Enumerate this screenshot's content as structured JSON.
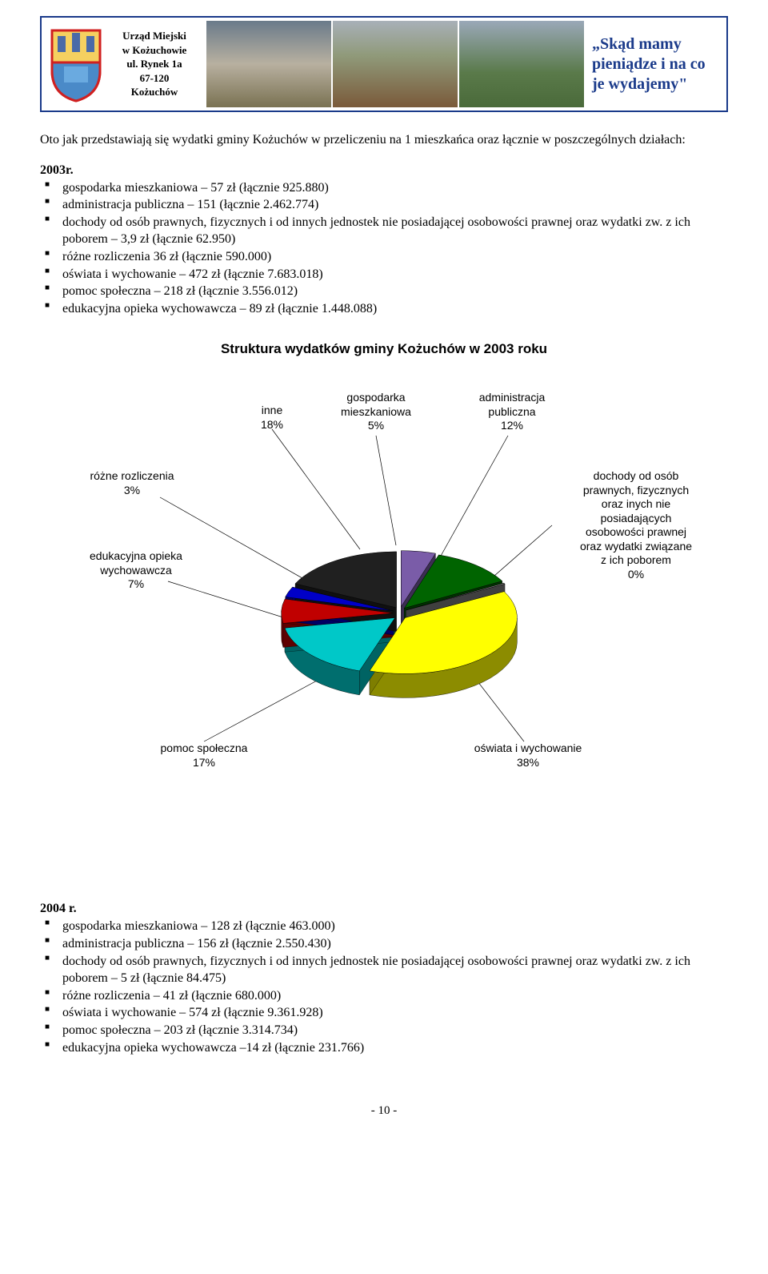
{
  "header": {
    "address": {
      "l1": "Urząd Miejski",
      "l2": "w Kożuchowie",
      "l3": "ul. Rynek 1a",
      "l4": "67-120",
      "l5": "Kożuchów"
    },
    "title": "„Skąd mamy pieniądze i na co je wydajemy\""
  },
  "intro": "Oto jak przedstawiają się wydatki gminy Kożuchów w przeliczeniu na 1 mieszkańca oraz łącznie w poszczególnych działach:",
  "year2003": {
    "heading": "2003r.",
    "items": [
      "gospodarka mieszkaniowa – 57 zł (łącznie 925.880)",
      "administracja publiczna – 151 (łącznie 2.462.774)",
      "dochody od osób prawnych, fizycznych i od innych jednostek nie posiadającej osobowości prawnej oraz wydatki zw. z ich poborem – 3,9 zł (łącznie 62.950)",
      "różne rozliczenia 36 zł (łącznie 590.000)",
      "oświata i wychowanie – 472 zł (łącznie 7.683.018)",
      "pomoc społeczna – 218 zł (łącznie 3.556.012)",
      "edukacyjna opieka wychowawcza – 89 zł (łącznie 1.448.088)"
    ]
  },
  "chart": {
    "type": "pie_3d",
    "title": "Struktura wydatków gminy Kożuchów w 2003 roku",
    "background_color": "#ffffff",
    "title_fontsize": 17,
    "label_fontsize": 14,
    "label_font": "Arial",
    "aspect_ratio": 1.6,
    "labels": {
      "inne": "inne\n18%",
      "gospodarka": "gospodarka\nmieszkaniowa\n5%",
      "administracja": "administracja\npubliczna\n12%",
      "rozne": "różne rozliczenia\n3%",
      "edukacyjna": "edukacyjna opieka\nwychowawcza\n7%",
      "dochody": "dochody od osób\nprawnych, fizycznych\noraz inych nie\nposiadających\nosobowości prawnej\noraz wydatki związane\nz ich poborem\n0%",
      "pomoc": "pomoc społeczna\n17%",
      "oswiata": "oświata i wychowanie\n38%"
    },
    "slices": [
      {
        "name": "gospodarka mieszkaniowa",
        "value": 5,
        "color": "#7a5ca8"
      },
      {
        "name": "administracja publiczna",
        "value": 12,
        "color": "#006400"
      },
      {
        "name": "dochody od osób prawnych",
        "value": 0,
        "color": "#808080"
      },
      {
        "name": "oświata i wychowanie",
        "value": 38,
        "color": "#ffff00"
      },
      {
        "name": "pomoc społeczna",
        "value": 17,
        "color": "#00c8c8"
      },
      {
        "name": "edukacyjna opieka wychowawcza",
        "value": 7,
        "color": "#c00000"
      },
      {
        "name": "różne rozliczenia",
        "value": 3,
        "color": "#0000c8"
      },
      {
        "name": "inne",
        "value": 18,
        "color": "#202020"
      }
    ],
    "depth_color_darken": 0.55
  },
  "year2004": {
    "heading": "2004 r.",
    "items": [
      "gospodarka mieszkaniowa – 128 zł (łącznie 463.000)",
      "administracja publiczna – 156 zł (łącznie 2.550.430)",
      "dochody od osób prawnych, fizycznych i od innych jednostek nie posiadającej osobowości prawnej oraz wydatki zw. z ich poborem – 5 zł (łącznie 84.475)",
      "różne rozliczenia – 41 zł (łącznie 680.000)",
      "oświata i wychowanie – 574 zł (łącznie 9.361.928)",
      "pomoc społeczna – 203 zł (łącznie 3.314.734)",
      "edukacyjna opieka wychowawcza –14 zł (łącznie 231.766)"
    ]
  },
  "page_number": "- 10 -",
  "crest": {
    "shield_top": "#f5d060",
    "shield_bottom": "#4a8ac8",
    "border": "#d02020"
  }
}
